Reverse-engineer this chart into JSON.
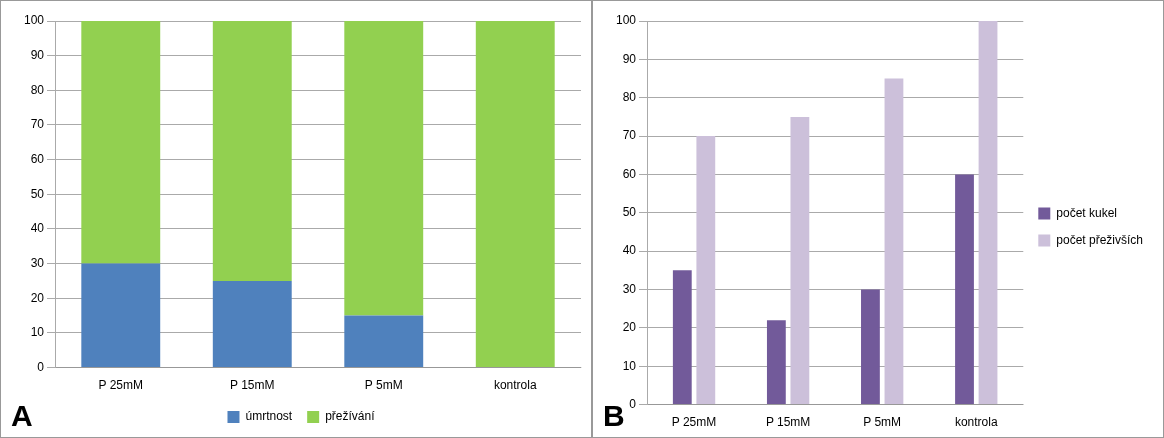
{
  "chart_data": [
    {
      "type": "bar",
      "categories": [
        "P 25mM",
        "P 15mM",
        "P 5mM",
        "kontrola"
      ],
      "stacked": true,
      "ylim": [
        0,
        100
      ],
      "yticks": [
        0,
        10,
        20,
        30,
        40,
        50,
        60,
        70,
        80,
        90,
        100
      ],
      "grid": "y",
      "legend": "bottom",
      "annotations": [
        "A"
      ],
      "series": [
        {
          "name": "úmrtnost",
          "color": "#4f81bd",
          "values": [
            30,
            25,
            15,
            0
          ]
        },
        {
          "name": "přežívání",
          "color": "#92d050",
          "values": [
            70,
            75,
            85,
            100
          ]
        }
      ]
    },
    {
      "type": "bar",
      "categories": [
        "P 25mM",
        "P 15mM",
        "P 5mM",
        "kontrola"
      ],
      "ylim": [
        0,
        100
      ],
      "yticks": [
        0,
        10,
        20,
        30,
        40,
        50,
        60,
        70,
        80,
        90,
        100
      ],
      "grid": "y",
      "legend": "right",
      "annotations": [
        "B"
      ],
      "series": [
        {
          "name": "počet kukel",
          "color": "#725a9a",
          "values": [
            35,
            22,
            30,
            60
          ]
        },
        {
          "name": "počet přeživších",
          "color": "#ccc0da",
          "values": [
            70,
            75,
            85,
            100
          ]
        }
      ]
    }
  ]
}
